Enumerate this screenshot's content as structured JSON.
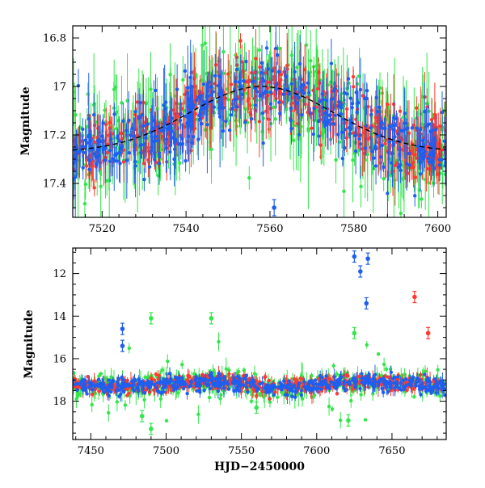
{
  "colors": {
    "red": "#ff3b2f",
    "green": "#33e64a",
    "blue": "#1e5ef0",
    "trend": "#000000"
  },
  "chart_data": [
    {
      "type": "scatter",
      "title": "",
      "xlabel": "",
      "ylabel": "Magnitude",
      "xlim": [
        7513,
        7602
      ],
      "ylim": [
        17.54,
        16.75
      ],
      "y_inverted": true,
      "x_ticks": [
        7520,
        7540,
        7560,
        7580,
        7600
      ],
      "y_ticks": [
        16.8,
        17,
        17.2,
        17.4
      ],
      "x_tick_labels": [
        "7520",
        "7540",
        "7560",
        "7580",
        "7600"
      ],
      "y_tick_labels": [
        "16.8",
        "17",
        "17.2",
        "17.4"
      ],
      "grid": false,
      "legend": "none",
      "series": [
        {
          "color": "red",
          "description": "error bars, dense light curve"
        },
        {
          "color": "green",
          "description": "error bars, dense light curve"
        },
        {
          "color": "blue",
          "description": "error bars, dense light curve"
        }
      ],
      "trend_points": [
        [
          7513,
          17.28
        ],
        [
          7520,
          17.25
        ],
        [
          7530,
          17.19
        ],
        [
          7540,
          17.12
        ],
        [
          7550,
          17.04
        ],
        [
          7560,
          17.0
        ],
        [
          7570,
          17.05
        ],
        [
          7580,
          17.12
        ],
        [
          7590,
          17.19
        ],
        [
          7600,
          17.25
        ],
        [
          7602,
          17.27
        ]
      ],
      "notable_points": [
        {
          "x": 7561,
          "y": 17.5,
          "series": "blue"
        }
      ]
    },
    {
      "type": "scatter",
      "title": "",
      "xlabel": "HJD−2450000",
      "ylabel": "Magnitude",
      "xlim": [
        7438,
        7686
      ],
      "ylim": [
        19.8,
        10.8
      ],
      "y_inverted": true,
      "x_ticks": [
        7450,
        7500,
        7550,
        7600,
        7650
      ],
      "y_ticks": [
        12,
        14,
        16,
        18
      ],
      "x_tick_labels": [
        "7450",
        "7500",
        "7550",
        "7600",
        "7650"
      ],
      "y_tick_labels": [
        "12",
        "14",
        "16",
        "18"
      ],
      "grid": false,
      "legend": "none",
      "series": [
        {
          "color": "red"
        },
        {
          "color": "green"
        },
        {
          "color": "blue"
        }
      ],
      "baseline": 17.2,
      "notable_points": [
        {
          "x": 7625,
          "y": 11.2,
          "series": "blue"
        },
        {
          "x": 7629,
          "y": 11.9,
          "series": "blue"
        },
        {
          "x": 7634,
          "y": 11.3,
          "series": "blue"
        },
        {
          "x": 7633,
          "y": 13.4,
          "series": "blue"
        },
        {
          "x": 7471,
          "y": 14.6,
          "series": "blue"
        },
        {
          "x": 7471,
          "y": 15.4,
          "series": "blue"
        },
        {
          "x": 7490,
          "y": 14.1,
          "series": "green"
        },
        {
          "x": 7530,
          "y": 14.1,
          "series": "green"
        },
        {
          "x": 7625,
          "y": 14.8,
          "series": "green"
        },
        {
          "x": 7665,
          "y": 13.1,
          "series": "red"
        },
        {
          "x": 7674,
          "y": 14.8,
          "series": "red"
        },
        {
          "x": 7490,
          "y": 19.3,
          "series": "green"
        },
        {
          "x": 7621,
          "y": 18.9,
          "series": "green"
        },
        {
          "x": 7560,
          "y": 18.3,
          "series": "green"
        },
        {
          "x": 7484,
          "y": 18.7,
          "series": "green"
        }
      ]
    }
  ]
}
